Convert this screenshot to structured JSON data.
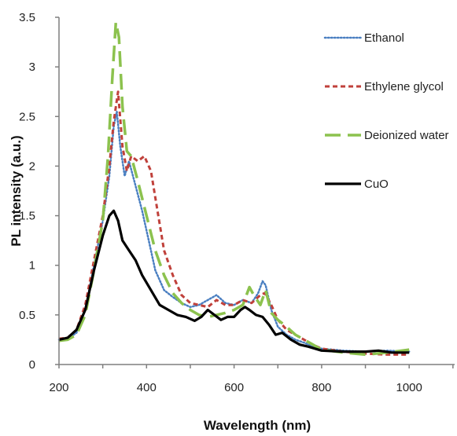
{
  "chart_data": {
    "type": "line",
    "xlabel": "Wavelength (nm)",
    "ylabel": "PL intensity (a.u.)",
    "xlim": [
      200,
      1100
    ],
    "ylim": [
      0,
      3.5
    ],
    "x_ticks": [
      "200",
      "400",
      "600",
      "800",
      "1000"
    ],
    "y_ticks": [
      "0",
      "0.5",
      "1",
      "1.5",
      "2",
      "2.5",
      "3",
      "3.5"
    ],
    "grid": false,
    "legend_position": "top-right",
    "series": [
      {
        "name": "Ethanol",
        "color": "#4a7fc1",
        "style": "dotted",
        "x": [
          200,
          220,
          240,
          260,
          280,
          300,
          315,
          325,
          332,
          340,
          350,
          360,
          375,
          390,
          405,
          420,
          440,
          460,
          480,
          500,
          520,
          540,
          560,
          580,
          600,
          620,
          640,
          655,
          665,
          672,
          685,
          700,
          720,
          740,
          760,
          780,
          800,
          850,
          900,
          950,
          1000
        ],
        "y": [
          0.25,
          0.26,
          0.32,
          0.55,
          1.0,
          1.45,
          1.9,
          2.4,
          2.55,
          2.2,
          1.9,
          2.05,
          1.8,
          1.55,
          1.25,
          0.95,
          0.75,
          0.68,
          0.62,
          0.58,
          0.6,
          0.65,
          0.7,
          0.62,
          0.6,
          0.65,
          0.62,
          0.72,
          0.84,
          0.8,
          0.55,
          0.38,
          0.3,
          0.25,
          0.22,
          0.18,
          0.16,
          0.14,
          0.13,
          0.14,
          0.13
        ]
      },
      {
        "name": "Ethylene glycol",
        "color": "#c0413b",
        "style": "dashed",
        "x": [
          200,
          220,
          240,
          260,
          280,
          300,
          315,
          325,
          335,
          345,
          355,
          365,
          380,
          395,
          410,
          425,
          440,
          460,
          480,
          500,
          520,
          540,
          560,
          580,
          600,
          620,
          640,
          660,
          670,
          685,
          700,
          720,
          740,
          760,
          780,
          800,
          850,
          900,
          950,
          1000
        ],
        "y": [
          0.26,
          0.27,
          0.35,
          0.6,
          1.05,
          1.5,
          2.0,
          2.45,
          2.75,
          2.2,
          1.95,
          2.1,
          2.05,
          2.1,
          1.95,
          1.55,
          1.15,
          0.9,
          0.7,
          0.62,
          0.6,
          0.58,
          0.65,
          0.6,
          0.6,
          0.65,
          0.62,
          0.7,
          0.72,
          0.6,
          0.45,
          0.35,
          0.3,
          0.25,
          0.2,
          0.16,
          0.13,
          0.11,
          0.1,
          0.1
        ]
      },
      {
        "name": "Deionized water",
        "color": "#8cc24e",
        "style": "long-dash",
        "x": [
          200,
          220,
          240,
          260,
          280,
          300,
          312,
          322,
          330,
          337,
          345,
          355,
          365,
          380,
          400,
          420,
          440,
          460,
          480,
          500,
          520,
          540,
          560,
          580,
          600,
          620,
          635,
          645,
          660,
          672,
          685,
          700,
          720,
          740,
          760,
          780,
          800,
          850,
          900,
          950,
          1000
        ],
        "y": [
          0.24,
          0.25,
          0.3,
          0.5,
          0.95,
          1.45,
          2.1,
          2.9,
          3.45,
          3.3,
          2.6,
          2.15,
          2.1,
          1.85,
          1.5,
          1.15,
          0.9,
          0.72,
          0.62,
          0.55,
          0.5,
          0.48,
          0.5,
          0.52,
          0.55,
          0.6,
          0.78,
          0.7,
          0.6,
          0.75,
          0.52,
          0.45,
          0.38,
          0.3,
          0.25,
          0.2,
          0.15,
          0.12,
          0.1,
          0.12,
          0.15
        ]
      },
      {
        "name": "CuO",
        "color": "#000000",
        "style": "solid",
        "x": [
          200,
          220,
          240,
          260,
          280,
          300,
          315,
          325,
          335,
          345,
          360,
          375,
          390,
          410,
          430,
          450,
          470,
          490,
          510,
          525,
          540,
          555,
          570,
          585,
          600,
          615,
          625,
          635,
          650,
          665,
          680,
          695,
          710,
          730,
          750,
          770,
          800,
          850,
          900,
          930,
          960,
          1000
        ],
        "y": [
          0.25,
          0.27,
          0.35,
          0.55,
          0.95,
          1.3,
          1.5,
          1.55,
          1.45,
          1.25,
          1.15,
          1.05,
          0.9,
          0.75,
          0.6,
          0.55,
          0.5,
          0.48,
          0.44,
          0.48,
          0.55,
          0.5,
          0.45,
          0.48,
          0.48,
          0.55,
          0.58,
          0.55,
          0.5,
          0.48,
          0.4,
          0.3,
          0.32,
          0.25,
          0.2,
          0.18,
          0.14,
          0.13,
          0.13,
          0.14,
          0.12,
          0.12
        ]
      }
    ]
  }
}
